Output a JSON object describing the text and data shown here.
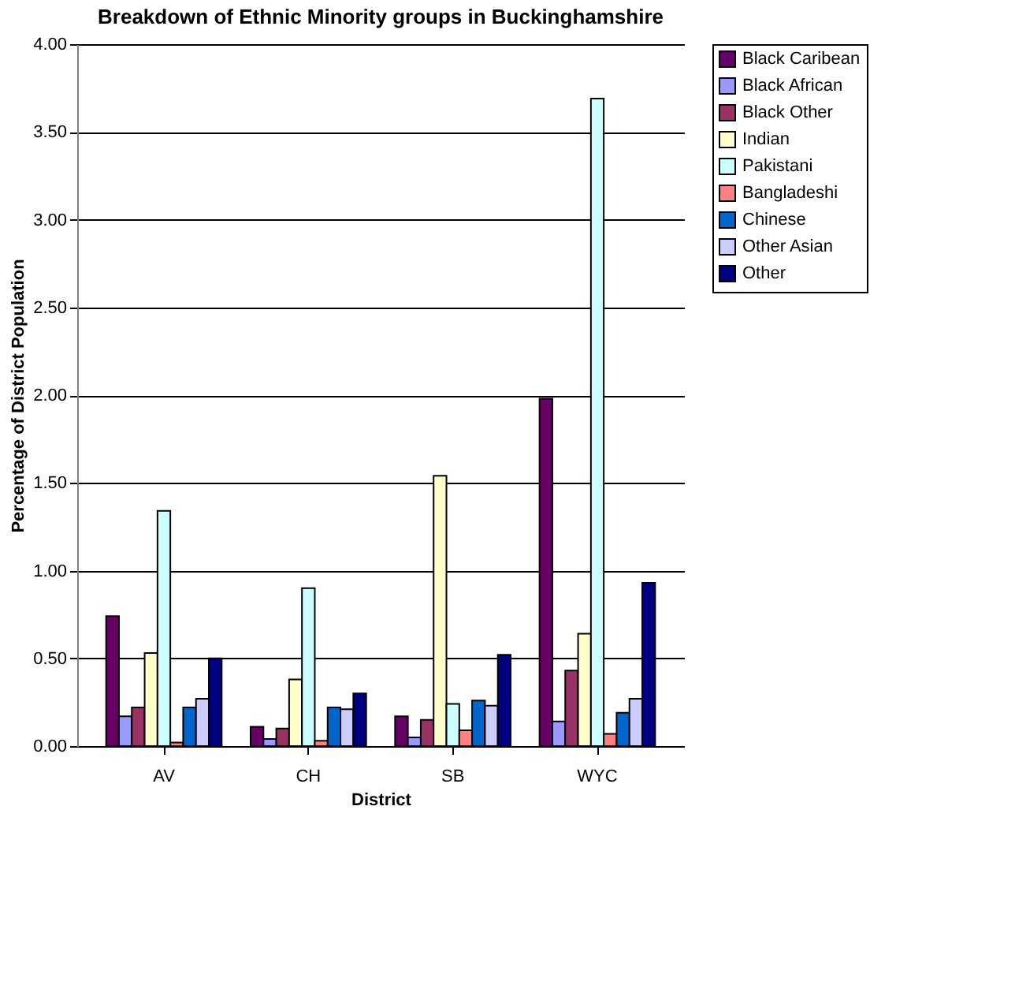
{
  "chart_data": {
    "type": "bar",
    "title": "Breakdown of Ethnic Minority groups in Buckinghamshire",
    "xlabel": "District",
    "ylabel": "Percentage of District Population",
    "categories": [
      "AV",
      "CH",
      "SB",
      "WYC"
    ],
    "series": [
      {
        "name": "Black Caribean",
        "color": "#660066",
        "values": [
          0.74,
          0.11,
          0.17,
          1.98
        ]
      },
      {
        "name": "Black African",
        "color": "#9999ff",
        "values": [
          0.17,
          0.04,
          0.05,
          0.14
        ]
      },
      {
        "name": "Black Other",
        "color": "#993366",
        "values": [
          0.22,
          0.1,
          0.15,
          0.43
        ]
      },
      {
        "name": "Indian",
        "color": "#ffffcc",
        "values": [
          0.53,
          0.38,
          1.54,
          0.64
        ]
      },
      {
        "name": "Pakistani",
        "color": "#ccffff",
        "values": [
          1.34,
          0.9,
          0.24,
          3.69
        ]
      },
      {
        "name": "Bangladeshi",
        "color": "#ff8080",
        "values": [
          0.02,
          0.03,
          0.09,
          0.07
        ]
      },
      {
        "name": "Chinese",
        "color": "#0066cc",
        "values": [
          0.22,
          0.22,
          0.26,
          0.19
        ]
      },
      {
        "name": "Other Asian",
        "color": "#ccccff",
        "values": [
          0.27,
          0.21,
          0.23,
          0.27
        ]
      },
      {
        "name": "Other",
        "color": "#000080",
        "values": [
          0.5,
          0.3,
          0.52,
          0.93
        ]
      }
    ],
    "ylim": [
      0,
      4
    ],
    "yticks": [
      {
        "value": 0,
        "label": "0.00"
      },
      {
        "value": 0.5,
        "label": "0.50"
      },
      {
        "value": 1,
        "label": "1.00"
      },
      {
        "value": 1.5,
        "label": "1.50"
      },
      {
        "value": 2,
        "label": "2.00"
      },
      {
        "value": 2.5,
        "label": "2.50"
      },
      {
        "value": 3,
        "label": "3.00"
      },
      {
        "value": 3.5,
        "label": "3.50"
      },
      {
        "value": 4,
        "label": "4.00"
      }
    ],
    "grid": "y",
    "legend": "right"
  }
}
